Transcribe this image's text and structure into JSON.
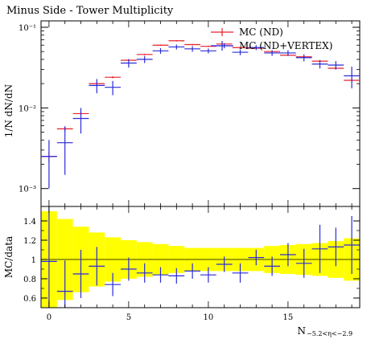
{
  "chart_data": [
    {
      "type": "scatter",
      "title": "Minus Side - Tower Multiplicity",
      "ylabel": "1/N dN/dN",
      "yscale": "log",
      "ylim": [
        0.0006,
        0.12
      ],
      "xlim": [
        -0.5,
        19.5
      ],
      "ytick_labels": [
        "10⁻¹",
        "10⁻²",
        "10⁻³"
      ],
      "legend_position": "top-right",
      "series": [
        {
          "name": "MC (ND)",
          "color": "#e8212b",
          "x": [
            0,
            1,
            2,
            3,
            4,
            5,
            6,
            7,
            8,
            9,
            10,
            11,
            12,
            13,
            14,
            15,
            16,
            17,
            18,
            19
          ],
          "y": [
            0.0025,
            0.0055,
            0.0085,
            0.02,
            0.024,
            0.039,
            0.046,
            0.06,
            0.068,
            0.061,
            0.058,
            0.062,
            0.056,
            0.055,
            0.05,
            0.045,
            0.043,
            0.038,
            0.031,
            0.022
          ],
          "yerr_rel": [
            0.15,
            0.06,
            0.05,
            0.03,
            0.03,
            0.025,
            0.02,
            0.02,
            0.02,
            0.02,
            0.02,
            0.02,
            0.02,
            0.02,
            0.02,
            0.02,
            0.02,
            0.025,
            0.03,
            0.035
          ]
        },
        {
          "name": "MC (ND+VERTEX)",
          "color": "#2b2bd9",
          "x": [
            0,
            1,
            2,
            3,
            4,
            5,
            6,
            7,
            8,
            9,
            10,
            11,
            12,
            13,
            14,
            15,
            16,
            17,
            18,
            19
          ],
          "y": [
            0.0025,
            0.0037,
            0.0074,
            0.019,
            0.018,
            0.036,
            0.04,
            0.051,
            0.057,
            0.054,
            0.051,
            0.059,
            0.049,
            0.056,
            0.048,
            0.048,
            0.042,
            0.035,
            0.034,
            0.025
          ],
          "yerr_rel": [
            0.6,
            0.6,
            0.35,
            0.2,
            0.2,
            0.12,
            0.1,
            0.08,
            0.07,
            0.08,
            0.07,
            0.07,
            0.08,
            0.07,
            0.08,
            0.08,
            0.1,
            0.12,
            0.12,
            0.3
          ]
        }
      ]
    },
    {
      "type": "scatter",
      "ylabel": "MC/data",
      "xlabel": "N",
      "xlabel_subscript": "−5.2<η<−2.9",
      "ylim": [
        0.5,
        1.55
      ],
      "xlim": [
        -0.5,
        19.5
      ],
      "xticks": [
        0,
        5,
        10,
        15
      ],
      "yticks": [
        0.6,
        0.8,
        1,
        1.2,
        1.4
      ],
      "band_color": "#ffff00",
      "band": {
        "x": [
          0,
          1,
          2,
          3,
          4,
          5,
          6,
          7,
          8,
          9,
          10,
          11,
          12,
          13,
          14,
          15,
          16,
          17,
          18,
          19
        ],
        "low": [
          0.5,
          0.58,
          0.66,
          0.72,
          0.77,
          0.8,
          0.82,
          0.84,
          0.86,
          0.88,
          0.88,
          0.88,
          0.88,
          0.88,
          0.86,
          0.85,
          0.84,
          0.83,
          0.81,
          0.78
        ],
        "high": [
          1.5,
          1.42,
          1.34,
          1.28,
          1.23,
          1.2,
          1.18,
          1.16,
          1.14,
          1.12,
          1.12,
          1.12,
          1.12,
          1.12,
          1.14,
          1.15,
          1.16,
          1.17,
          1.19,
          1.22
        ]
      },
      "series": [
        {
          "name": "MC (ND+VERTEX)",
          "color": "#2b2bd9",
          "x": [
            0,
            1,
            2,
            3,
            4,
            5,
            6,
            7,
            8,
            9,
            10,
            11,
            12,
            13,
            14,
            15,
            16,
            17,
            18,
            19
          ],
          "y": [
            0.98,
            0.67,
            0.85,
            0.93,
            0.74,
            0.9,
            0.86,
            0.84,
            0.83,
            0.88,
            0.84,
            0.95,
            0.86,
            1.02,
            0.93,
            1.05,
            0.96,
            1.11,
            1.13,
            1.15
          ],
          "yerr": [
            0.6,
            0.32,
            0.25,
            0.2,
            0.12,
            0.12,
            0.1,
            0.08,
            0.08,
            0.08,
            0.08,
            0.08,
            0.1,
            0.08,
            0.1,
            0.12,
            0.15,
            0.25,
            0.2,
            0.3
          ]
        }
      ]
    }
  ]
}
